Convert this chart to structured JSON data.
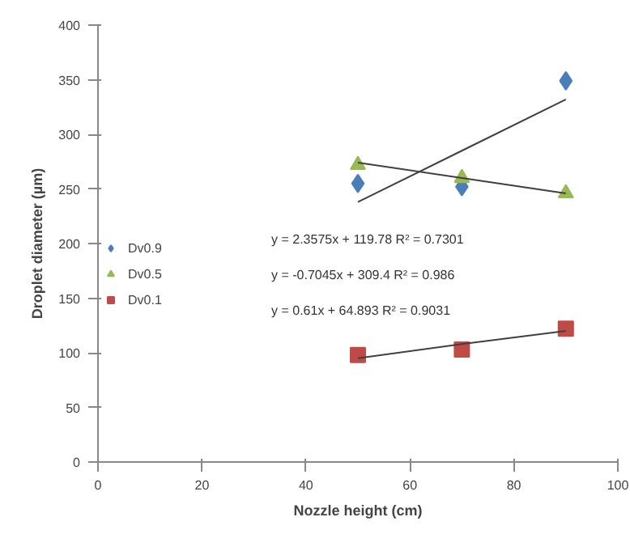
{
  "chart_data": {
    "type": "scatter",
    "xlabel": "Nozzle height (cm)",
    "ylabel": "Droplet diameter (µm)",
    "x": [
      50,
      70,
      90
    ],
    "series": [
      {
        "name": "Dv0.9",
        "color": "#4a7ebb",
        "marker": "diamond",
        "values": [
          255,
          252,
          349
        ]
      },
      {
        "name": "Dv0.5",
        "color": "#98b954",
        "marker": "triangle",
        "values": [
          272,
          260,
          246
        ]
      },
      {
        "name": "Dv0.1",
        "color": "#be4b48",
        "marker": "square",
        "values": [
          98,
          103,
          122
        ]
      },
      {
        "type": "line",
        "color": "#404040",
        "values": [
          238,
          285,
          332
        ]
      },
      {
        "type": "line",
        "color": "#404040",
        "values": [
          274,
          260,
          246
        ]
      },
      {
        "type": "line",
        "color": "#404040",
        "values": [
          95,
          108,
          120
        ]
      }
    ],
    "annotations": [
      "y = 2.3575x + 119.78  R² = 0.7301",
      "y = -0.7045x + 309.4  R² = 0.986",
      "y = 0.61x + 64.893  R² = 0.9031"
    ],
    "xlim": [
      0,
      100
    ],
    "xticks": [
      0,
      20,
      40,
      60,
      80,
      100
    ],
    "ylim": [
      0,
      400
    ],
    "yticks": [
      0,
      50,
      100,
      150,
      200,
      250,
      300,
      350,
      400
    ],
    "grid": false,
    "legend": "left",
    "line_style": "solid"
  }
}
